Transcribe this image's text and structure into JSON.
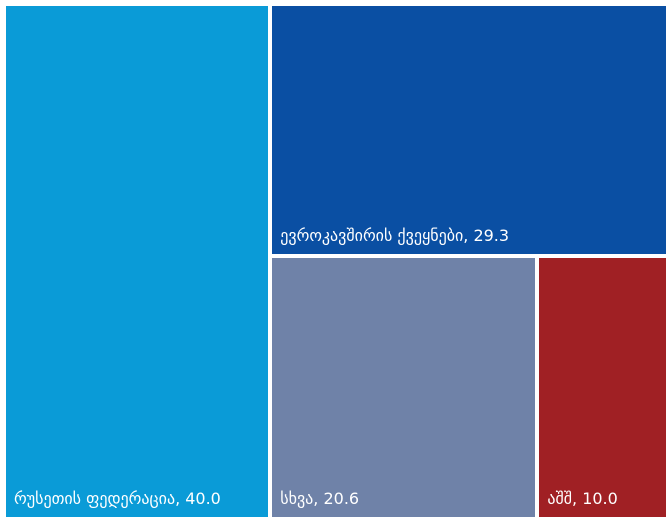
{
  "chart_data": {
    "type": "treemap",
    "title": "",
    "items": [
      {
        "label": "რუსეთის ფედერაცია, 40.0",
        "name": "რუსეთის ფედერაცია",
        "value": 40.0,
        "color": "#0a9bd7"
      },
      {
        "label": "ევროკავშირის ქვეყნები, 29.3",
        "name": "ევროკავშირის ქვეყნები",
        "value": 29.3,
        "color": "#0a4fa3"
      },
      {
        "label": "სხვა, 20.6",
        "name": "სხვა",
        "value": 20.6,
        "color": "#6f82a8"
      },
      {
        "label": "აშშ, 10.0",
        "name": "აშშ",
        "value": 10.0,
        "color": "#a02024"
      }
    ]
  }
}
